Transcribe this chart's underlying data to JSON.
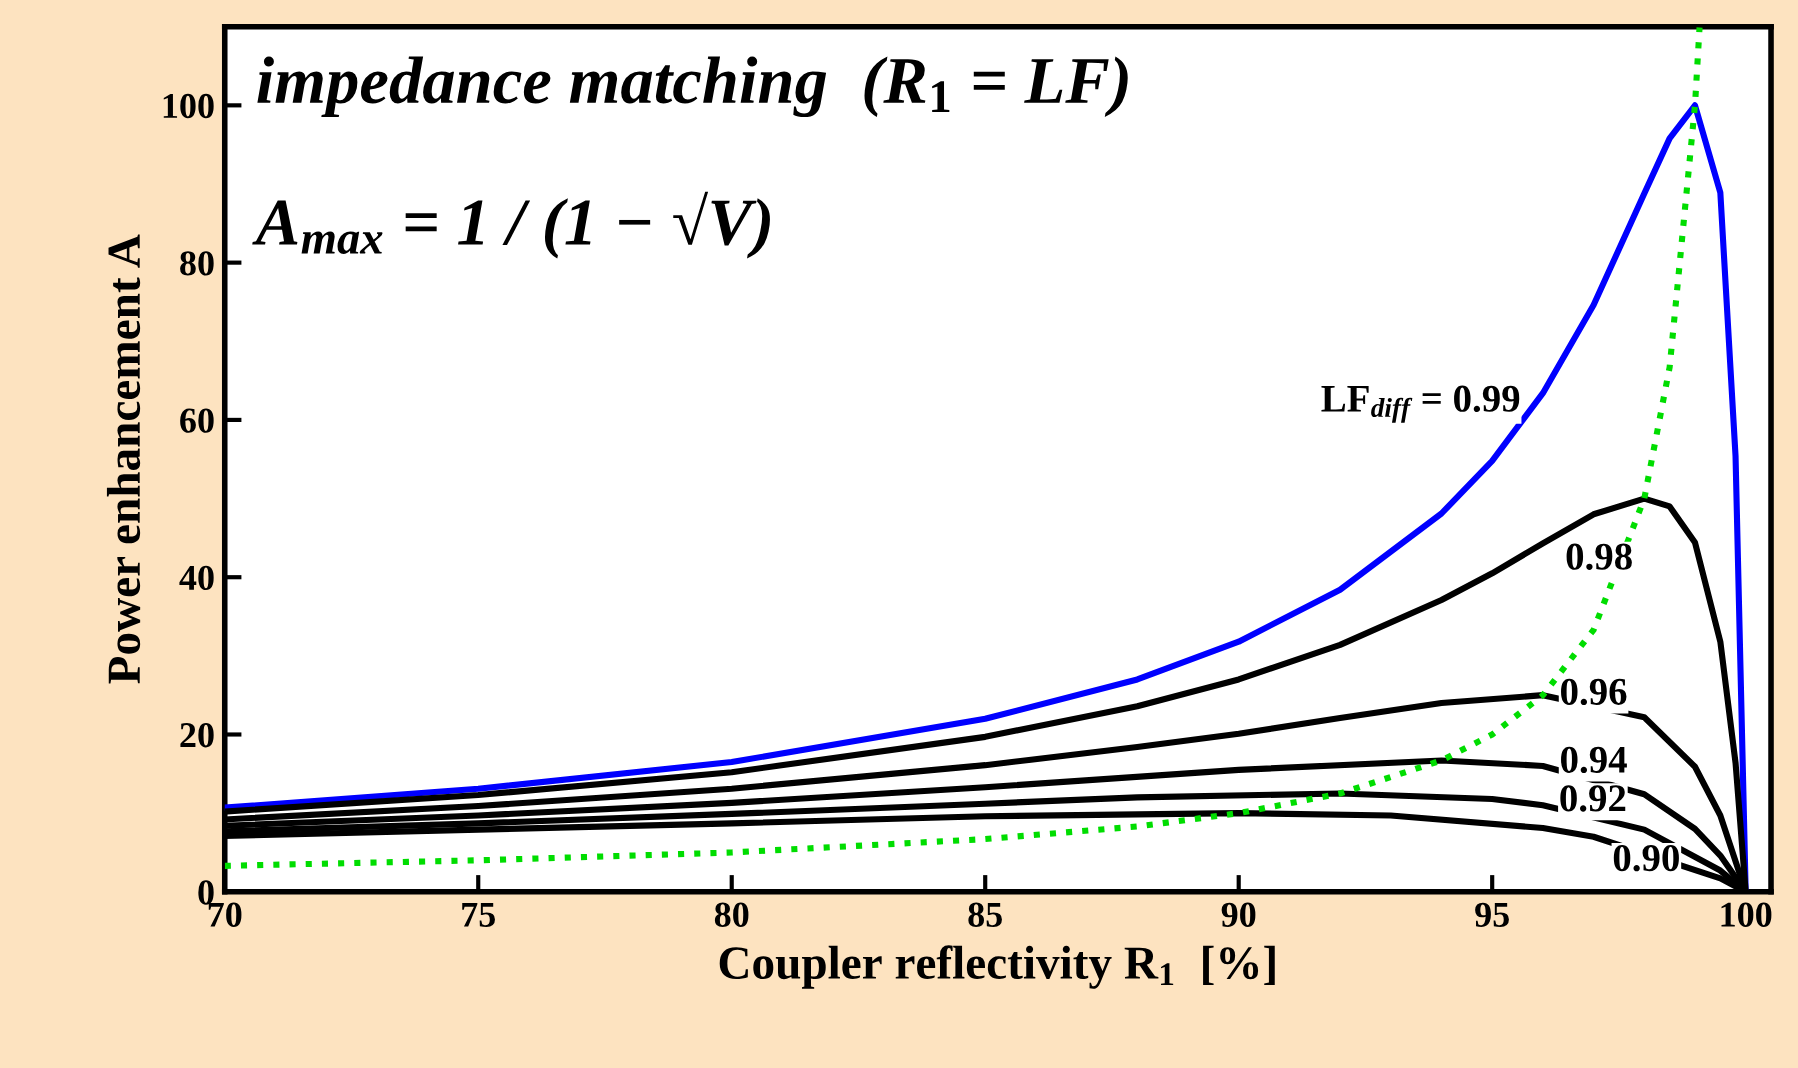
{
  "chart_data": {
    "type": "line",
    "xlabel": "Coupler reflectivity R$_{1}$  [%]",
    "ylabel": "Power enhancement A",
    "xlim": [
      70,
      100.5
    ],
    "ylim": [
      0,
      110
    ],
    "xticks": [
      70,
      75,
      80,
      85,
      90,
      95,
      100
    ],
    "yticks": [
      0,
      20,
      40,
      60,
      80,
      100
    ],
    "grid": false,
    "legend": false,
    "marker": "none",
    "series": [
      {
        "name": "LF$_{diff}$ = 0.99",
        "color": "#0000ff",
        "line_style": "solid",
        "x": [
          70,
          75,
          80,
          85,
          88,
          90,
          92,
          94,
          95,
          96,
          97,
          98,
          98.5,
          99,
          99.5,
          99.8,
          100
        ],
        "values": [
          10.7,
          13.1,
          16.5,
          22.0,
          27.0,
          31.8,
          38.4,
          48.1,
          54.8,
          63.4,
          74.6,
          88.8,
          95.8,
          100,
          88.9,
          55.4,
          0
        ]
      },
      {
        "name": "0.98",
        "color": "#000000",
        "line_style": "solid",
        "x": [
          70,
          75,
          80,
          85,
          88,
          90,
          92,
          94,
          95,
          96,
          97,
          98,
          98.5,
          99,
          99.5,
          99.8,
          100
        ],
        "values": [
          10.2,
          12.3,
          15.2,
          19.7,
          23.6,
          27.0,
          31.4,
          37.1,
          40.5,
          44.3,
          48.0,
          50,
          49.0,
          44.4,
          31.8,
          16.4,
          0
        ]
      },
      {
        "name": "0.96",
        "color": "#000000",
        "line_style": "solid",
        "x": [
          70,
          75,
          80,
          85,
          88,
          90,
          92,
          94,
          96,
          98,
          99,
          99.5,
          100
        ],
        "values": [
          9.2,
          10.9,
          13.1,
          16.1,
          18.4,
          20.1,
          22.1,
          24.0,
          25,
          22.2,
          15.9,
          9.7,
          0
        ]
      },
      {
        "name": "0.94",
        "color": "#000000",
        "line_style": "solid",
        "x": [
          70,
          75,
          80,
          85,
          90,
          94,
          96,
          98,
          99,
          99.5,
          100
        ],
        "values": [
          8.4,
          9.7,
          11.3,
          13.3,
          15.5,
          16.7,
          16.0,
          12.4,
          8.0,
          4.6,
          0
        ]
      },
      {
        "name": "0.92",
        "color": "#000000",
        "line_style": "solid",
        "x": [
          70,
          75,
          80,
          85,
          88,
          92,
          95,
          96,
          98,
          99.5,
          100
        ],
        "values": [
          7.7,
          8.7,
          9.9,
          11.2,
          12.0,
          12.5,
          11.8,
          11.0,
          7.9,
          2.7,
          0
        ]
      },
      {
        "name": "0.90",
        "color": "#000000",
        "line_style": "solid",
        "x": [
          70,
          75,
          80,
          85,
          90,
          93,
          96,
          97,
          99.5,
          100
        ],
        "values": [
          7.1,
          7.9,
          8.7,
          9.6,
          10,
          9.7,
          8.1,
          7.0,
          1.7,
          0
        ]
      },
      {
        "color": "#00dd00",
        "line_style": "dotted",
        "x": [
          70,
          75,
          80,
          85,
          88,
          90,
          92,
          94,
          95,
          96,
          97,
          98,
          98.5,
          99,
          99.09
        ],
        "values": [
          3.3,
          4.0,
          5.0,
          6.7,
          8.3,
          10,
          12.5,
          16.7,
          20,
          25,
          33.3,
          50,
          66.7,
          100,
          109.9
        ]
      }
    ],
    "annotations": [
      "impedance matching  (R$_{1}$ = LF)",
      "A$_{max}$ = 1 / (1 − √V)"
    ]
  }
}
